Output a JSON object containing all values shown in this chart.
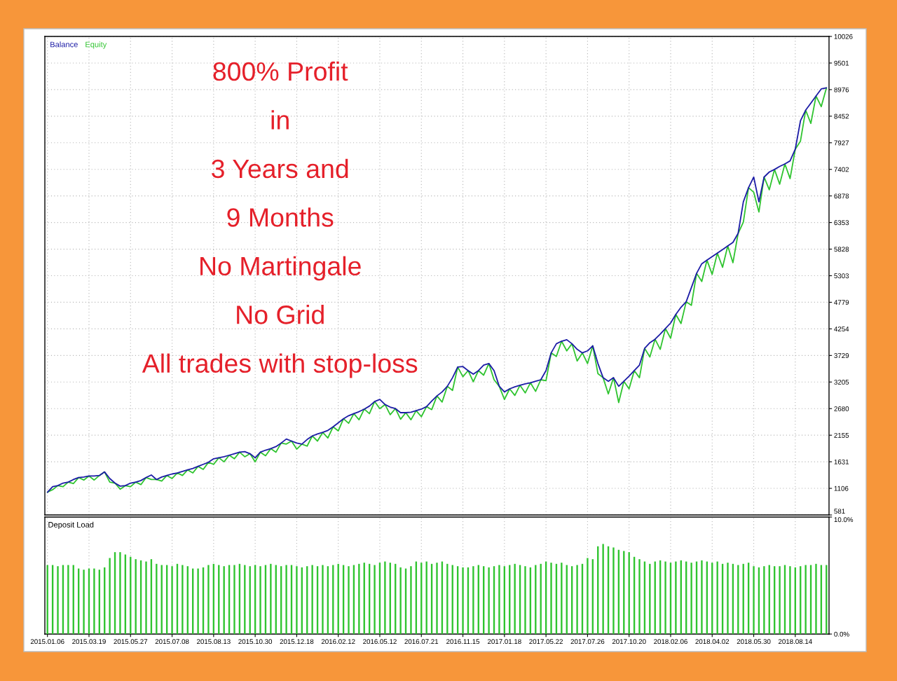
{
  "chart_data": [
    {
      "type": "line",
      "categories": [
        "2015.01.06",
        null,
        null,
        null,
        null,
        null,
        null,
        null,
        "2015.03.19",
        null,
        null,
        null,
        null,
        null,
        null,
        null,
        "2015.05.27",
        null,
        null,
        null,
        null,
        null,
        null,
        null,
        "2015.07.08",
        null,
        null,
        null,
        null,
        null,
        null,
        null,
        "2015.08.13",
        null,
        null,
        null,
        null,
        null,
        null,
        null,
        "2015.10.30",
        null,
        null,
        null,
        null,
        null,
        null,
        null,
        "2015.12.18",
        null,
        null,
        null,
        null,
        null,
        null,
        null,
        "2016.02.12",
        null,
        null,
        null,
        null,
        null,
        null,
        null,
        "2016.05.12",
        null,
        null,
        null,
        null,
        null,
        null,
        null,
        "2016.07.21",
        null,
        null,
        null,
        null,
        null,
        null,
        null,
        "2016.11.15",
        null,
        null,
        null,
        null,
        null,
        null,
        null,
        "2017.01.18",
        null,
        null,
        null,
        null,
        null,
        null,
        null,
        "2017.05.22",
        null,
        null,
        null,
        null,
        null,
        null,
        null,
        "2017.07.26",
        null,
        null,
        null,
        null,
        null,
        null,
        null,
        "2017.10.20",
        null,
        null,
        null,
        null,
        null,
        null,
        null,
        "2018.02.06",
        null,
        null,
        null,
        null,
        null,
        null,
        null,
        "2018.04.02",
        null,
        null,
        null,
        null,
        null,
        null,
        null,
        "2018.05.30",
        null,
        null,
        null,
        null,
        null,
        null,
        null,
        "2018.08.14",
        null,
        null,
        null,
        null,
        null,
        null
      ],
      "series": [
        {
          "name": "Balance",
          "color": "#1c1ca6",
          "values": [
            1030,
            1140,
            1160,
            1210,
            1230,
            1280,
            1320,
            1330,
            1350,
            1350,
            1360,
            1430,
            1300,
            1210,
            1150,
            1160,
            1210,
            1230,
            1260,
            1320,
            1370,
            1280,
            1330,
            1360,
            1390,
            1410,
            1440,
            1470,
            1500,
            1540,
            1580,
            1620,
            1690,
            1710,
            1730,
            1760,
            1790,
            1820,
            1830,
            1790,
            1710,
            1820,
            1860,
            1890,
            1930,
            2000,
            2080,
            2040,
            2000,
            1980,
            2070,
            2140,
            2180,
            2210,
            2250,
            2320,
            2400,
            2480,
            2540,
            2580,
            2620,
            2670,
            2730,
            2820,
            2860,
            2760,
            2710,
            2680,
            2600,
            2600,
            2610,
            2640,
            2670,
            2720,
            2830,
            2930,
            3010,
            3120,
            3290,
            3500,
            3510,
            3430,
            3360,
            3430,
            3540,
            3570,
            3430,
            3120,
            3010,
            3070,
            3110,
            3140,
            3170,
            3190,
            3220,
            3250,
            3430,
            3780,
            3960,
            4010,
            4040,
            3960,
            3850,
            3780,
            3820,
            3920,
            3570,
            3290,
            3220,
            3290,
            3120,
            3220,
            3320,
            3430,
            3540,
            3870,
            3980,
            4050,
            4150,
            4260,
            4370,
            4540,
            4680,
            4790,
            5070,
            5350,
            5540,
            5610,
            5680,
            5750,
            5820,
            5890,
            5960,
            6140,
            6760,
            7040,
            7250,
            6760,
            7250,
            7350,
            7400,
            7460,
            7510,
            7570,
            7800,
            8360,
            8570,
            8710,
            8850,
            8990,
            9010
          ]
        },
        {
          "name": "Equity",
          "color": "#2fc42f",
          "values": [
            1030,
            1080,
            1160,
            1140,
            1230,
            1200,
            1320,
            1270,
            1350,
            1270,
            1360,
            1430,
            1230,
            1210,
            1090,
            1160,
            1140,
            1230,
            1180,
            1320,
            1280,
            1280,
            1250,
            1360,
            1300,
            1410,
            1360,
            1470,
            1410,
            1540,
            1480,
            1620,
            1580,
            1710,
            1630,
            1760,
            1690,
            1820,
            1730,
            1790,
            1630,
            1820,
            1750,
            1890,
            1820,
            2000,
            1980,
            2040,
            1880,
            1980,
            1940,
            2140,
            2040,
            2210,
            2100,
            2320,
            2240,
            2480,
            2390,
            2580,
            2460,
            2670,
            2580,
            2820,
            2680,
            2760,
            2560,
            2680,
            2470,
            2600,
            2460,
            2640,
            2520,
            2720,
            2660,
            2930,
            2810,
            3120,
            3040,
            3500,
            3310,
            3430,
            3210,
            3430,
            3340,
            3570,
            3250,
            3120,
            2860,
            3070,
            2940,
            3140,
            2990,
            3190,
            3020,
            3250,
            3230,
            3780,
            3710,
            4010,
            3820,
            3960,
            3620,
            3780,
            3570,
            3920,
            3370,
            3290,
            2970,
            3290,
            2800,
            3220,
            3070,
            3430,
            3290,
            3870,
            3700,
            4050,
            3850,
            4260,
            4070,
            4540,
            4360,
            4790,
            4720,
            5350,
            5190,
            5610,
            5330,
            5750,
            5470,
            5890,
            5560,
            6140,
            6360,
            7040,
            6950,
            6560,
            7250,
            7000,
            7400,
            7110,
            7510,
            7220,
            7800,
            7960,
            8570,
            8310,
            8850,
            8640,
            9010
          ]
        }
      ],
      "ylim": [
        581,
        10026
      ],
      "yticks": [
        581,
        1106,
        1631,
        2155,
        2680,
        3205,
        3729,
        4254,
        4779,
        5303,
        5828,
        6353,
        6878,
        7402,
        7927,
        8452,
        8976,
        9501,
        10026
      ],
      "grid": true,
      "legend": "top left",
      "tick_labels": "y",
      "annotations": [
        "800% Profit",
        "in",
        "3 Years and",
        "9 Months",
        "No Martingale",
        "No Grid",
        "All trades with stop-loss"
      ]
    },
    {
      "type": "bar",
      "title": "Deposit Load",
      "categories": [
        "2015.01.06",
        null,
        null,
        null,
        null,
        null,
        null,
        null,
        "2015.03.19",
        null,
        null,
        null,
        null,
        null,
        null,
        null,
        "2015.05.27",
        null,
        null,
        null,
        null,
        null,
        null,
        null,
        "2015.07.08",
        null,
        null,
        null,
        null,
        null,
        null,
        null,
        "2015.08.13",
        null,
        null,
        null,
        null,
        null,
        null,
        null,
        "2015.10.30",
        null,
        null,
        null,
        null,
        null,
        null,
        null,
        "2015.12.18",
        null,
        null,
        null,
        null,
        null,
        null,
        null,
        "2016.02.12",
        null,
        null,
        null,
        null,
        null,
        null,
        null,
        "2016.05.12",
        null,
        null,
        null,
        null,
        null,
        null,
        null,
        "2016.07.21",
        null,
        null,
        null,
        null,
        null,
        null,
        null,
        "2016.11.15",
        null,
        null,
        null,
        null,
        null,
        null,
        null,
        "2017.01.18",
        null,
        null,
        null,
        null,
        null,
        null,
        null,
        "2017.05.22",
        null,
        null,
        null,
        null,
        null,
        null,
        null,
        "2017.07.26",
        null,
        null,
        null,
        null,
        null,
        null,
        null,
        "2017.10.20",
        null,
        null,
        null,
        null,
        null,
        null,
        null,
        "2018.02.06",
        null,
        null,
        null,
        null,
        null,
        null,
        null,
        "2018.04.02",
        null,
        null,
        null,
        null,
        null,
        null,
        null,
        "2018.05.30",
        null,
        null,
        null,
        null,
        null,
        null,
        null,
        "2018.08.14",
        null,
        null,
        null,
        null,
        null,
        null
      ],
      "values": [
        5.9,
        5.9,
        5.8,
        5.9,
        5.9,
        5.9,
        5.6,
        5.5,
        5.6,
        5.6,
        5.5,
        5.7,
        6.5,
        7.0,
        7.0,
        6.8,
        6.6,
        6.4,
        6.3,
        6.2,
        6.4,
        6.0,
        5.9,
        5.9,
        5.8,
        6.0,
        5.9,
        5.8,
        5.6,
        5.6,
        5.7,
        5.9,
        6.0,
        5.9,
        5.8,
        5.9,
        5.9,
        6.0,
        5.9,
        5.8,
        5.9,
        5.8,
        5.9,
        6.0,
        5.9,
        5.8,
        5.9,
        5.9,
        5.8,
        5.7,
        5.8,
        5.9,
        5.8,
        5.9,
        5.8,
        5.9,
        6.0,
        5.9,
        5.8,
        5.9,
        6.0,
        6.1,
        6.0,
        5.9,
        6.1,
        6.2,
        6.1,
        6.0,
        5.7,
        5.6,
        5.8,
        6.2,
        6.1,
        6.2,
        6.0,
        6.1,
        6.2,
        6.0,
        5.9,
        5.8,
        5.7,
        5.7,
        5.8,
        5.9,
        5.8,
        5.7,
        5.8,
        5.9,
        5.8,
        5.9,
        6.0,
        5.9,
        5.8,
        5.7,
        5.9,
        6.0,
        6.2,
        6.1,
        6.0,
        6.1,
        5.9,
        5.8,
        5.9,
        6.0,
        6.5,
        6.4,
        7.5,
        7.7,
        7.5,
        7.4,
        7.2,
        7.1,
        7.0,
        6.6,
        6.4,
        6.2,
        6.0,
        6.2,
        6.3,
        6.2,
        6.1,
        6.2,
        6.3,
        6.2,
        6.1,
        6.2,
        6.3,
        6.2,
        6.1,
        6.2,
        6.0,
        6.1,
        6.0,
        5.9,
        6.0,
        6.1,
        5.8,
        5.7,
        5.8,
        5.9,
        5.8,
        5.8,
        5.9,
        5.8,
        5.7,
        5.8,
        5.9,
        5.9,
        6.0,
        5.9,
        5.9
      ],
      "color": "#2fc42f",
      "ylim": [
        0,
        10
      ],
      "yticks": [
        {
          "value": 0,
          "label": "0.0%"
        },
        {
          "value": 10,
          "label": "10.0%"
        }
      ],
      "grid": "x"
    }
  ]
}
